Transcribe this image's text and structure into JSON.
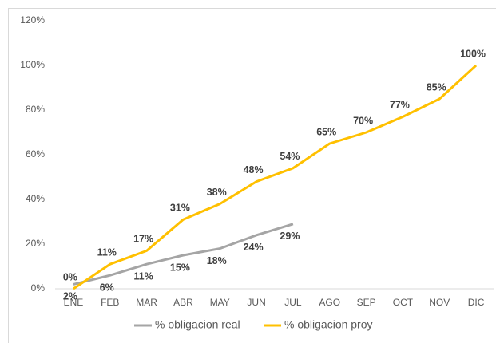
{
  "chart_data": {
    "type": "line",
    "categories": [
      "ENE",
      "FEB",
      "MAR",
      "ABR",
      "MAY",
      "JUN",
      "JUL",
      "AGO",
      "SEP",
      "OCT",
      "NOV",
      "DIC"
    ],
    "series": [
      {
        "name": "% obligacion real",
        "color": "#a5a5a5",
        "values": [
          2,
          6,
          11,
          15,
          18,
          24,
          29,
          null,
          null,
          null,
          null,
          null
        ],
        "value_labels": [
          "2%",
          "6%",
          "11%",
          "15%",
          "18%",
          "24%",
          "29%",
          null,
          null,
          null,
          null,
          null
        ]
      },
      {
        "name": "% obligacion proy",
        "color": "#ffc000",
        "values": [
          0,
          11,
          17,
          31,
          38,
          48,
          54,
          65,
          70,
          77,
          85,
          100
        ],
        "value_labels": [
          "0%",
          "11%",
          "17%",
          "31%",
          "38%",
          "48%",
          "54%",
          "65%",
          "70%",
          "77%",
          "85%",
          "100%"
        ]
      }
    ],
    "ylim": [
      0,
      120
    ],
    "yticks": [
      {
        "value": 0,
        "label": "0%"
      },
      {
        "value": 20,
        "label": "20%"
      },
      {
        "value": 40,
        "label": "40%"
      },
      {
        "value": 60,
        "label": "60%"
      },
      {
        "value": 80,
        "label": "80%"
      },
      {
        "value": 100,
        "label": "100%"
      },
      {
        "value": 120,
        "label": "120%"
      }
    ],
    "legend": "bottom"
  }
}
